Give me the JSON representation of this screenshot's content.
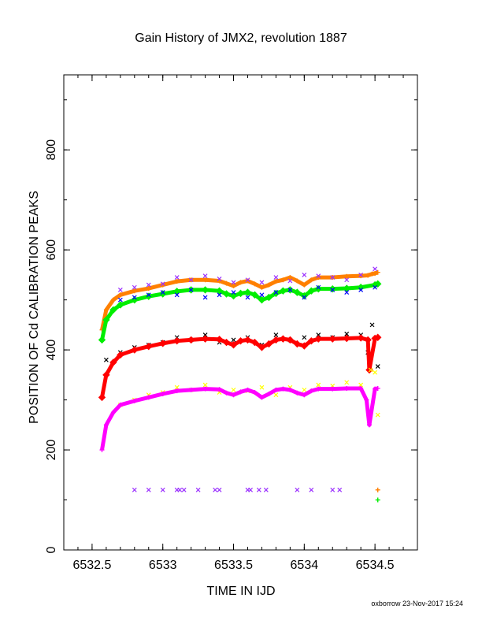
{
  "chart_data": {
    "type": "scatter",
    "title": "Gain History of JMX2, revolution 1887",
    "xlabel": "TIME IN IJD",
    "ylabel": "POSITION OF Cd CALIBRATION PEAKS",
    "xlim": [
      6532.3,
      6534.8
    ],
    "ylim": [
      0,
      950
    ],
    "x_ticks": [
      6532.5,
      6533,
      6533.5,
      6534,
      6534.5
    ],
    "x_tick_labels": [
      "6532.5",
      "6533",
      "6533.5",
      "6534",
      "6534.5"
    ],
    "y_ticks": [
      0,
      200,
      400,
      600,
      800
    ],
    "y_tick_labels": [
      "0",
      "200",
      "400",
      "600",
      "800"
    ],
    "grid": false,
    "credit": "oxborrow 23-Nov-2017 15:24",
    "series": [
      {
        "color": "#ff8000",
        "marker": "plus",
        "x": [
          6532.57,
          6532.6,
          6532.65,
          6532.7,
          6532.8,
          6532.9,
          6533.0,
          6533.1,
          6533.2,
          6533.3,
          6533.4,
          6533.45,
          6533.5,
          6533.55,
          6533.6,
          6533.65,
          6533.7,
          6533.75,
          6533.8,
          6533.85,
          6533.9,
          6533.95,
          6534.0,
          6534.05,
          6534.1,
          6534.2,
          6534.3,
          6534.4,
          6534.45,
          6534.48,
          6534.5,
          6534.52
        ],
        "y": [
          440,
          480,
          500,
          510,
          518,
          523,
          530,
          537,
          540,
          540,
          538,
          533,
          528,
          535,
          538,
          532,
          525,
          530,
          537,
          540,
          545,
          538,
          530,
          540,
          545,
          545,
          547,
          548,
          549,
          552,
          553,
          555
        ]
      },
      {
        "color": "#9b30ff",
        "marker": "x",
        "x": [
          6532.7,
          6532.8,
          6532.9,
          6533.0,
          6533.1,
          6533.2,
          6533.3,
          6533.4,
          6533.5,
          6533.6,
          6533.7,
          6533.8,
          6533.9,
          6534.0,
          6534.1,
          6534.2,
          6534.3,
          6534.4,
          6534.5
        ],
        "y": [
          520,
          525,
          530,
          532,
          545,
          540,
          548,
          542,
          535,
          540,
          535,
          545,
          538,
          550,
          548,
          545,
          540,
          550,
          562
        ]
      },
      {
        "color": "#00ee00",
        "marker": "diamond",
        "x": [
          6532.57,
          6532.6,
          6532.65,
          6532.7,
          6532.8,
          6532.9,
          6533.0,
          6533.1,
          6533.2,
          6533.3,
          6533.4,
          6533.45,
          6533.5,
          6533.55,
          6533.6,
          6533.65,
          6533.7,
          6533.75,
          6533.8,
          6533.85,
          6533.9,
          6533.95,
          6534.0,
          6534.05,
          6534.1,
          6534.2,
          6534.3,
          6534.4,
          6534.5,
          6534.52
        ],
        "y": [
          420,
          460,
          480,
          490,
          500,
          507,
          512,
          517,
          520,
          520,
          518,
          512,
          508,
          513,
          515,
          510,
          500,
          505,
          513,
          518,
          520,
          515,
          508,
          518,
          522,
          522,
          523,
          525,
          530,
          532
        ]
      },
      {
        "color": "#0000ff",
        "marker": "x",
        "x": [
          6532.7,
          6532.8,
          6532.9,
          6533.0,
          6533.1,
          6533.2,
          6533.3,
          6533.4,
          6533.5,
          6533.6,
          6533.7,
          6533.8,
          6533.9,
          6534.0,
          6534.1,
          6534.2,
          6534.3,
          6534.4,
          6534.5
        ],
        "y": [
          500,
          505,
          510,
          515,
          510,
          520,
          505,
          510,
          515,
          505,
          510,
          515,
          520,
          505,
          525,
          520,
          515,
          520,
          525
        ]
      },
      {
        "color": "#000000",
        "marker": "x",
        "x": [
          6532.6,
          6532.7,
          6532.8,
          6532.9,
          6533.0,
          6533.1,
          6533.2,
          6533.3,
          6533.4,
          6533.5,
          6533.6,
          6533.7,
          6533.8,
          6533.9,
          6534.0,
          6534.1,
          6534.2,
          6534.3,
          6534.4,
          6534.45,
          6534.48,
          6534.52
        ],
        "y": [
          380,
          395,
          405,
          410,
          415,
          425,
          420,
          430,
          415,
          420,
          425,
          410,
          430,
          420,
          425,
          430,
          425,
          432,
          430,
          395,
          450,
          367
        ]
      },
      {
        "color": "#ff0000",
        "marker": "diamond",
        "x": [
          6532.57,
          6532.6,
          6532.65,
          6532.7,
          6532.8,
          6532.9,
          6533.0,
          6533.1,
          6533.2,
          6533.3,
          6533.4,
          6533.45,
          6533.5,
          6533.55,
          6533.6,
          6533.65,
          6533.7,
          6533.75,
          6533.8,
          6533.85,
          6533.9,
          6533.95,
          6534.0,
          6534.05,
          6534.1,
          6534.2,
          6534.3,
          6534.4,
          6534.45,
          6534.46,
          6534.5,
          6534.52
        ],
        "y": [
          305,
          350,
          375,
          390,
          400,
          407,
          413,
          418,
          420,
          422,
          421,
          415,
          410,
          418,
          420,
          415,
          405,
          412,
          420,
          422,
          420,
          412,
          408,
          418,
          422,
          422,
          423,
          424,
          420,
          360,
          423,
          425
        ]
      },
      {
        "color": "#ffff00",
        "marker": "x",
        "x": [
          6532.7,
          6532.8,
          6532.9,
          6533.0,
          6533.1,
          6533.2,
          6533.3,
          6533.4,
          6533.5,
          6533.6,
          6533.7,
          6533.8,
          6533.9,
          6534.0,
          6534.1,
          6534.2,
          6534.3,
          6534.4,
          6534.47,
          6534.5,
          6534.52
        ],
        "y": [
          290,
          300,
          310,
          315,
          325,
          320,
          330,
          315,
          320,
          318,
          325,
          310,
          325,
          320,
          330,
          328,
          335,
          330,
          360,
          355,
          270
        ]
      },
      {
        "color": "#ff00ff",
        "marker": "plus",
        "x": [
          6532.57,
          6532.6,
          6532.65,
          6532.7,
          6532.8,
          6532.9,
          6533.0,
          6533.1,
          6533.2,
          6533.3,
          6533.4,
          6533.45,
          6533.5,
          6533.55,
          6533.6,
          6533.65,
          6533.7,
          6533.75,
          6533.8,
          6533.85,
          6533.9,
          6533.95,
          6534.0,
          6534.05,
          6534.1,
          6534.2,
          6534.3,
          6534.4,
          6534.44,
          6534.46,
          6534.5,
          6534.52
        ],
        "y": [
          200,
          250,
          275,
          290,
          298,
          305,
          312,
          318,
          320,
          322,
          321,
          314,
          310,
          316,
          320,
          315,
          305,
          312,
          320,
          322,
          320,
          314,
          310,
          318,
          322,
          322,
          323,
          323,
          300,
          250,
          322,
          323
        ]
      },
      {
        "color": "#9b30ff",
        "marker": "x",
        "x": [
          6532.8,
          6532.9,
          6533.0,
          6533.1,
          6533.12,
          6533.15,
          6533.25,
          6533.37,
          6533.4,
          6533.6,
          6533.62,
          6533.68,
          6533.73,
          6533.95,
          6534.05,
          6534.2,
          6534.25
        ],
        "y": [
          120,
          120,
          120,
          120,
          120,
          120,
          120,
          120,
          120,
          120,
          120,
          120,
          120,
          120,
          120,
          120,
          120
        ]
      },
      {
        "color": "#ff8000",
        "marker": "plus",
        "x": [
          6534.52
        ],
        "y": [
          120
        ]
      },
      {
        "color": "#00ee00",
        "marker": "plus",
        "x": [
          6534.52
        ],
        "y": [
          100
        ]
      }
    ]
  }
}
